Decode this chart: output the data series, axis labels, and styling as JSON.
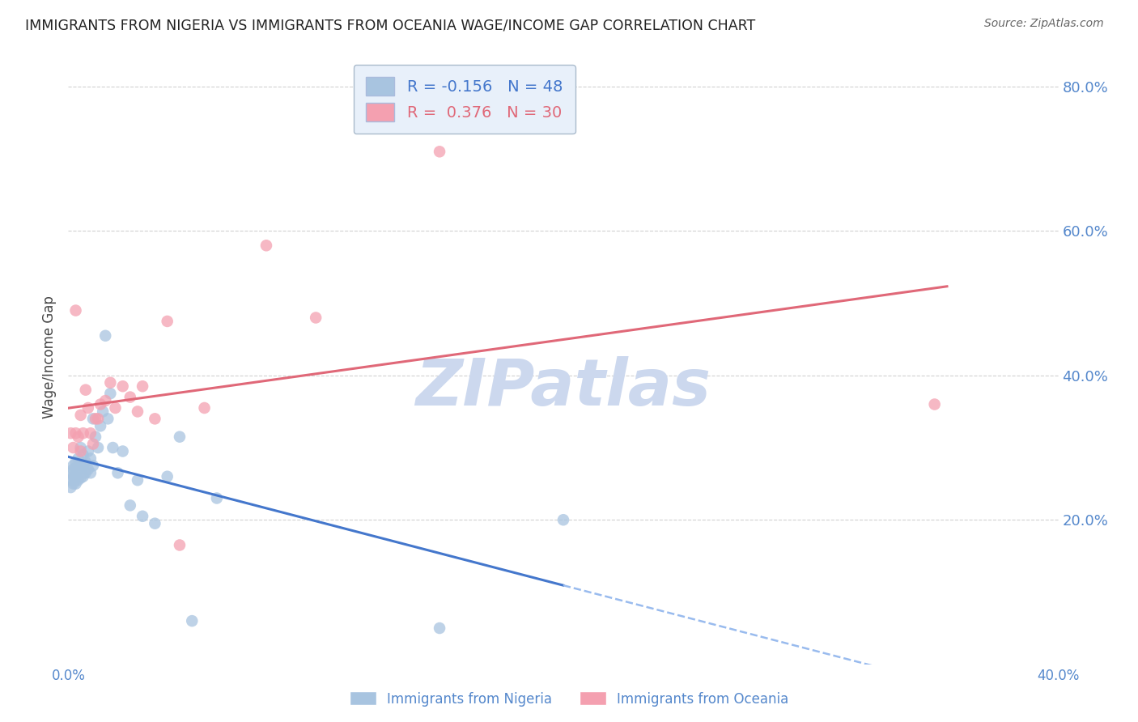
{
  "title": "IMMIGRANTS FROM NIGERIA VS IMMIGRANTS FROM OCEANIA WAGE/INCOME GAP CORRELATION CHART",
  "source": "Source: ZipAtlas.com",
  "ylabel": "Wage/Income Gap",
  "xlim": [
    0.0,
    0.4
  ],
  "ylim": [
    0.0,
    0.85
  ],
  "x_ticks": [
    0.0,
    0.1,
    0.2,
    0.3,
    0.4
  ],
  "x_tick_labels": [
    "0.0%",
    "",
    "",
    "",
    "40.0%"
  ],
  "y_ticks": [
    0.2,
    0.4,
    0.6,
    0.8
  ],
  "y_tick_labels": [
    "20.0%",
    "40.0%",
    "60.0%",
    "80.0%"
  ],
  "nigeria_color": "#a8c4e0",
  "oceania_color": "#f4a0b0",
  "nigeria_line_color": "#4477cc",
  "nigeria_dash_color": "#99bbee",
  "oceania_line_color": "#e06878",
  "nigeria_R": -0.156,
  "nigeria_N": 48,
  "oceania_R": 0.376,
  "oceania_N": 30,
  "nigeria_x": [
    0.001,
    0.001,
    0.001,
    0.002,
    0.002,
    0.002,
    0.002,
    0.003,
    0.003,
    0.003,
    0.003,
    0.004,
    0.004,
    0.004,
    0.005,
    0.005,
    0.005,
    0.006,
    0.006,
    0.006,
    0.007,
    0.007,
    0.008,
    0.008,
    0.009,
    0.009,
    0.01,
    0.01,
    0.011,
    0.012,
    0.013,
    0.014,
    0.015,
    0.016,
    0.017,
    0.018,
    0.02,
    0.022,
    0.025,
    0.028,
    0.03,
    0.035,
    0.04,
    0.045,
    0.05,
    0.06,
    0.15,
    0.2
  ],
  "nigeria_y": [
    0.265,
    0.255,
    0.245,
    0.275,
    0.27,
    0.26,
    0.25,
    0.28,
    0.272,
    0.26,
    0.25,
    0.285,
    0.27,
    0.255,
    0.3,
    0.275,
    0.258,
    0.29,
    0.275,
    0.26,
    0.28,
    0.265,
    0.295,
    0.27,
    0.285,
    0.265,
    0.34,
    0.275,
    0.315,
    0.3,
    0.33,
    0.35,
    0.455,
    0.34,
    0.375,
    0.3,
    0.265,
    0.295,
    0.22,
    0.255,
    0.205,
    0.195,
    0.26,
    0.315,
    0.06,
    0.23,
    0.05,
    0.2
  ],
  "oceania_x": [
    0.001,
    0.002,
    0.003,
    0.003,
    0.004,
    0.005,
    0.005,
    0.006,
    0.007,
    0.008,
    0.009,
    0.01,
    0.011,
    0.012,
    0.013,
    0.015,
    0.017,
    0.019,
    0.022,
    0.025,
    0.028,
    0.03,
    0.035,
    0.04,
    0.045,
    0.055,
    0.08,
    0.1,
    0.15,
    0.35
  ],
  "oceania_y": [
    0.32,
    0.3,
    0.32,
    0.49,
    0.315,
    0.295,
    0.345,
    0.32,
    0.38,
    0.355,
    0.32,
    0.305,
    0.34,
    0.34,
    0.36,
    0.365,
    0.39,
    0.355,
    0.385,
    0.37,
    0.35,
    0.385,
    0.34,
    0.475,
    0.165,
    0.355,
    0.58,
    0.48,
    0.71,
    0.36
  ],
  "watermark": "ZIPatlas",
  "watermark_color": "#ccd8ee",
  "background_color": "#ffffff",
  "grid_color": "#cccccc",
  "axis_color": "#5588cc",
  "title_color": "#222222",
  "legend_box_color": "#e8f0fa"
}
